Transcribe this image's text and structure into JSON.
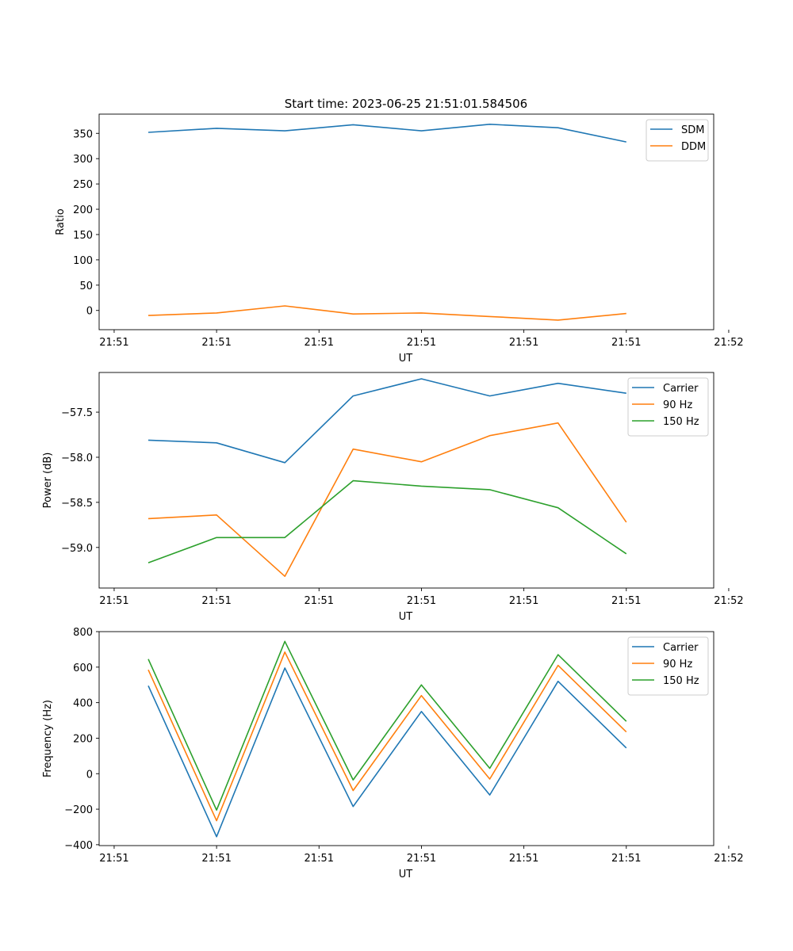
{
  "title": "Start time: 2023-06-25 21:51:01.584506",
  "colors": {
    "blue": "#1f77b4",
    "orange": "#ff7f0e",
    "green": "#2ca02c"
  },
  "chart_data": [
    {
      "type": "line",
      "xlabel": "UT",
      "ylabel": "Ratio",
      "x": [
        1,
        2,
        3,
        4,
        5,
        6,
        7,
        8
      ],
      "xlim": [
        0.28,
        9.28
      ],
      "xticks": [
        0.5,
        2.0,
        3.5,
        5.0,
        6.5,
        8.0,
        9.5
      ],
      "xtick_labels": [
        "21:51",
        "21:51",
        "21:51",
        "21:51",
        "21:51",
        "21:51",
        "21:52"
      ],
      "ylim": [
        -38,
        388
      ],
      "yticks": [
        0,
        50,
        100,
        150,
        200,
        250,
        300,
        350
      ],
      "ytick_labels": [
        "0",
        "50",
        "100",
        "150",
        "200",
        "250",
        "300",
        "350"
      ],
      "legend": "top-right",
      "series": [
        {
          "name": "SDM",
          "color": "#1f77b4",
          "values": [
            352,
            360,
            355,
            367,
            355,
            368,
            361,
            333
          ]
        },
        {
          "name": "DDM",
          "color": "#ff7f0e",
          "values": [
            -10,
            -5,
            9,
            -7,
            -5,
            -12,
            -19,
            -6
          ]
        }
      ]
    },
    {
      "type": "line",
      "xlabel": "UT",
      "ylabel": "Power (dB)",
      "x": [
        1,
        2,
        3,
        4,
        5,
        6,
        7,
        8
      ],
      "xlim": [
        0.28,
        9.28
      ],
      "xticks": [
        0.5,
        2.0,
        3.5,
        5.0,
        6.5,
        8.0,
        9.5
      ],
      "xtick_labels": [
        "21:51",
        "21:51",
        "21:51",
        "21:51",
        "21:51",
        "21:51",
        "21:52"
      ],
      "ylim": [
        -59.45,
        -57.06
      ],
      "yticks": [
        -59.0,
        -58.5,
        -58.0,
        -57.5
      ],
      "ytick_labels": [
        "−59.0",
        "−58.5",
        "−58.0",
        "−57.5"
      ],
      "legend": "top-right",
      "series": [
        {
          "name": "Carrier",
          "color": "#1f77b4",
          "values": [
            -57.81,
            -57.84,
            -58.06,
            -57.32,
            -57.13,
            -57.32,
            -57.18,
            -57.29
          ]
        },
        {
          "name": "90 Hz",
          "color": "#ff7f0e",
          "values": [
            -58.68,
            -58.64,
            -59.32,
            -57.91,
            -58.05,
            -57.76,
            -57.62,
            -58.72
          ]
        },
        {
          "name": "150 Hz",
          "color": "#2ca02c",
          "values": [
            -59.17,
            -58.89,
            -58.89,
            -58.26,
            -58.32,
            -58.36,
            -58.56,
            -59.07
          ]
        }
      ]
    },
    {
      "type": "line",
      "xlabel": "UT",
      "ylabel": "Frequency (Hz)",
      "x": [
        1,
        2,
        3,
        4,
        5,
        6,
        7,
        8
      ],
      "xlim": [
        0.28,
        9.28
      ],
      "xticks": [
        0.5,
        2.0,
        3.5,
        5.0,
        6.5,
        8.0,
        9.5
      ],
      "xtick_labels": [
        "21:51",
        "21:51",
        "21:51",
        "21:51",
        "21:51",
        "21:51",
        "21:52"
      ],
      "ylim": [
        -405,
        800
      ],
      "yticks": [
        -400,
        -200,
        0,
        200,
        400,
        600,
        800
      ],
      "ytick_labels": [
        "−400",
        "−200",
        "0",
        "200",
        "400",
        "600",
        "800"
      ],
      "legend": "top-right",
      "series": [
        {
          "name": "Carrier",
          "color": "#1f77b4",
          "values": [
            495,
            -355,
            595,
            -185,
            350,
            -120,
            520,
            145
          ]
        },
        {
          "name": "90 Hz",
          "color": "#ff7f0e",
          "values": [
            585,
            -265,
            685,
            -95,
            440,
            -30,
            610,
            235
          ]
        },
        {
          "name": "150 Hz",
          "color": "#2ca02c",
          "values": [
            645,
            -205,
            745,
            -35,
            500,
            30,
            670,
            295
          ]
        }
      ]
    }
  ]
}
